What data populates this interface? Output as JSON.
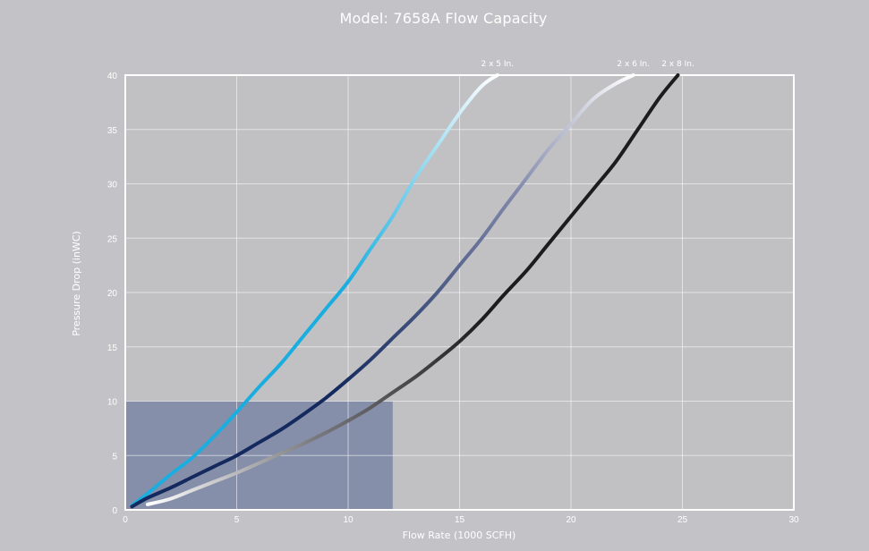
{
  "chart_data": {
    "type": "line",
    "title": "Model: 7658A Flow Capacity",
    "xlabel": "Flow Rate (1000 SCFH)",
    "ylabel": "Pressure Drop (inWC)",
    "xlim": [
      0,
      30
    ],
    "ylim": [
      0,
      40
    ],
    "xticks": [
      0,
      5,
      10,
      15,
      20,
      25,
      30
    ],
    "yticks": [
      0,
      5,
      10,
      15,
      20,
      25,
      30,
      35,
      40
    ],
    "grid": true,
    "highlight_region": {
      "x": [
        0,
        12
      ],
      "y": [
        0,
        10
      ]
    },
    "series": [
      {
        "name": "2 x 5 In.",
        "color_start": "#1aaee0",
        "color_end": "#ffffff",
        "points": [
          [
            0.3,
            0.4
          ],
          [
            1,
            1.5
          ],
          [
            2,
            3.2
          ],
          [
            3,
            4.8
          ],
          [
            4,
            6.8
          ],
          [
            5,
            9
          ],
          [
            6,
            11.3
          ],
          [
            7,
            13.5
          ],
          [
            8,
            16
          ],
          [
            9,
            18.5
          ],
          [
            10,
            21
          ],
          [
            11,
            24
          ],
          [
            12,
            27
          ],
          [
            13,
            30.5
          ],
          [
            14,
            33.5
          ],
          [
            15,
            36.5
          ],
          [
            16,
            39
          ],
          [
            16.7,
            40
          ]
        ]
      },
      {
        "name": "2 x 6 In.",
        "color_start": "#142a5e",
        "color_end": "#ffffff",
        "points": [
          [
            0.3,
            0.3
          ],
          [
            1,
            1.1
          ],
          [
            2,
            2
          ],
          [
            3,
            3
          ],
          [
            4,
            4
          ],
          [
            5,
            5
          ],
          [
            6,
            6.2
          ],
          [
            7,
            7.4
          ],
          [
            8,
            8.8
          ],
          [
            9,
            10.3
          ],
          [
            10,
            12
          ],
          [
            11,
            13.8
          ],
          [
            12,
            15.8
          ],
          [
            13,
            17.8
          ],
          [
            14,
            20
          ],
          [
            15,
            22.5
          ],
          [
            16,
            25
          ],
          [
            17,
            27.8
          ],
          [
            18,
            30.5
          ],
          [
            19,
            33.2
          ],
          [
            20,
            35.5
          ],
          [
            21,
            37.8
          ],
          [
            22,
            39.2
          ],
          [
            22.8,
            40
          ]
        ]
      },
      {
        "name": "2 x 8 In.",
        "color_start": "#ffffff",
        "color_end": "#1c1c1e",
        "points": [
          [
            1,
            0.5
          ],
          [
            2,
            1
          ],
          [
            3,
            1.8
          ],
          [
            4,
            2.6
          ],
          [
            5,
            3.4
          ],
          [
            6,
            4.3
          ],
          [
            7,
            5.2
          ],
          [
            8,
            6.1
          ],
          [
            9,
            7.1
          ],
          [
            10,
            8.2
          ],
          [
            11,
            9.4
          ],
          [
            12,
            10.8
          ],
          [
            13,
            12.2
          ],
          [
            14,
            13.8
          ],
          [
            15,
            15.5
          ],
          [
            16,
            17.5
          ],
          [
            17,
            19.8
          ],
          [
            18,
            22
          ],
          [
            19,
            24.5
          ],
          [
            20,
            27
          ],
          [
            21,
            29.5
          ],
          [
            22,
            32
          ],
          [
            23,
            35
          ],
          [
            24,
            38
          ],
          [
            24.8,
            40
          ]
        ]
      }
    ]
  }
}
